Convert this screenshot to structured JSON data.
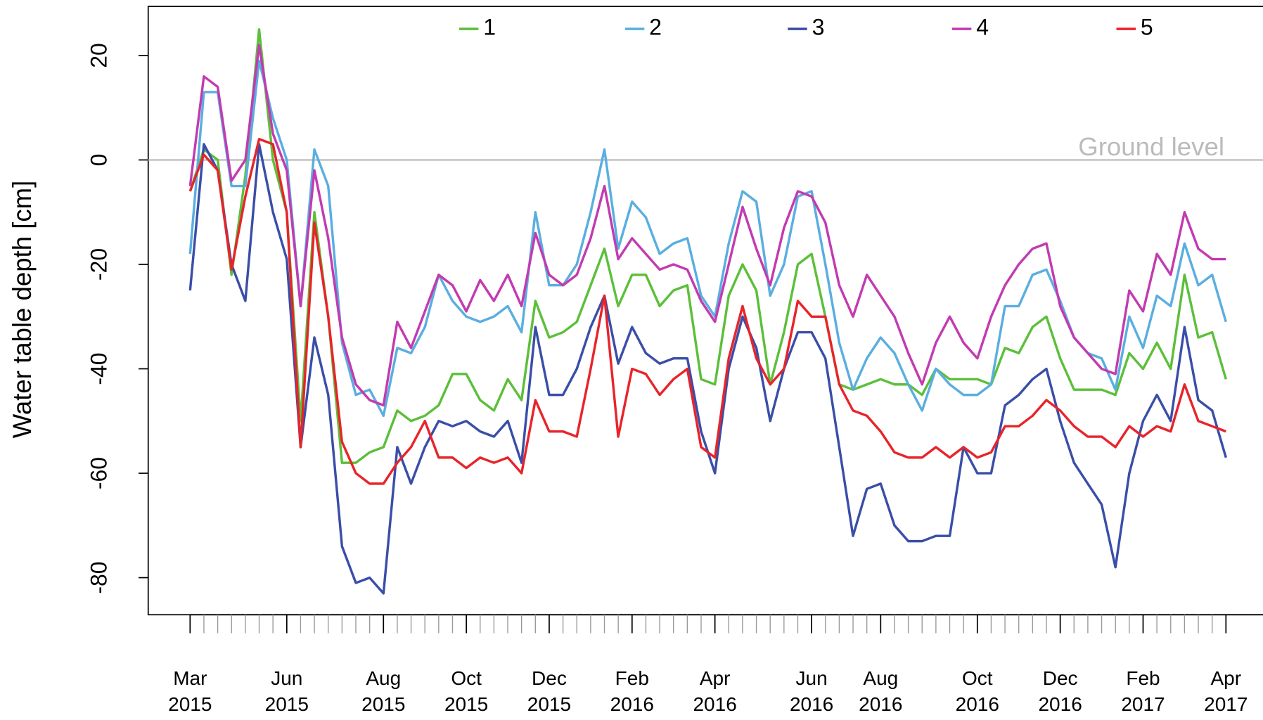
{
  "chart_data": {
    "type": "line",
    "y_label": "Water table depth [cm]",
    "categories": [
      "Mar\n2015",
      null,
      null,
      null,
      null,
      null,
      null,
      "Jun\n2015",
      null,
      null,
      null,
      null,
      null,
      null,
      "Aug\n2015",
      null,
      null,
      null,
      null,
      null,
      "Oct\n2015",
      null,
      null,
      null,
      null,
      null,
      "Dec\n2015",
      null,
      null,
      null,
      null,
      null,
      "Feb\n2016",
      null,
      null,
      null,
      null,
      null,
      "Apr\n2016",
      null,
      null,
      null,
      null,
      null,
      null,
      "Jun\n2016",
      null,
      null,
      null,
      null,
      "Aug\n2016",
      null,
      null,
      null,
      null,
      null,
      null,
      "Oct\n2016",
      null,
      null,
      null,
      null,
      null,
      "Dec\n2016",
      null,
      null,
      null,
      null,
      null,
      "Feb\n2017",
      null,
      null,
      null,
      null,
      null,
      "Apr\n2017"
    ],
    "ylim": [
      -87.1,
      29.4
    ],
    "yticks": [
      20,
      0,
      -20,
      -40,
      -60,
      -80
    ],
    "reference_line": {
      "value": 0,
      "label": "Ground level",
      "color": "#bbbbbb"
    },
    "legend": "top",
    "series": [
      {
        "name": "1",
        "color": "#5cbf3a",
        "values": [
          -6,
          2,
          0,
          -22,
          -3,
          25,
          0,
          -10,
          -50,
          -10,
          -30,
          -58,
          -58,
          -56,
          -55,
          -48,
          -50,
          -49,
          -47,
          -41,
          -41,
          -46,
          -48,
          -42,
          -46,
          -27,
          -34,
          -33,
          -31,
          -24,
          -17,
          -28,
          -22,
          -22,
          -28,
          -25,
          -24,
          -42,
          -43,
          -26,
          -20,
          -25,
          -43,
          -33,
          -20,
          -18,
          -30,
          -43,
          -44,
          -43,
          -42,
          -43,
          -43,
          -45,
          -40,
          -42,
          -42,
          -42,
          -43,
          -36,
          -37,
          -32,
          -30,
          -38,
          -44,
          -44,
          -44,
          -45,
          -37,
          -40,
          -35,
          -40,
          -22,
          -34,
          -33,
          -42
        ]
      },
      {
        "name": "2",
        "color": "#5aaee0",
        "values": [
          -18,
          13,
          13,
          -5,
          -5,
          19,
          8,
          0,
          -28,
          2,
          -5,
          -35,
          -45,
          -44,
          -49,
          -36,
          -37,
          -32,
          -22,
          -27,
          -30,
          -31,
          -30,
          -28,
          -33,
          -10,
          -24,
          -24,
          -20,
          -10,
          2,
          -17,
          -8,
          -11,
          -18,
          -16,
          -15,
          -26,
          -30,
          -16,
          -6,
          -8,
          -26,
          -20,
          -7,
          -6,
          -20,
          -35,
          -44,
          -38,
          -34,
          -37,
          -43,
          -48,
          -40,
          -43,
          -45,
          -45,
          -43,
          -28,
          -28,
          -22,
          -21,
          -27,
          -34,
          -37,
          -38,
          -44,
          -30,
          -36,
          -26,
          -28,
          -16,
          -24,
          -22,
          -31
        ]
      },
      {
        "name": "3",
        "color": "#3a4ea8",
        "values": [
          -25,
          3,
          -2,
          -20,
          -27,
          3,
          -10,
          -19,
          -55,
          -34,
          -45,
          -74,
          -81,
          -80,
          -83,
          -55,
          -62,
          -55,
          -50,
          -51,
          -50,
          -52,
          -53,
          -50,
          -58,
          -32,
          -45,
          -45,
          -40,
          -32,
          -26,
          -39,
          -32,
          -37,
          -39,
          -38,
          -38,
          -52,
          -60,
          -40,
          -30,
          -36,
          -50,
          -40,
          -33,
          -33,
          -38,
          -55,
          -72,
          -63,
          -62,
          -70,
          -73,
          -73,
          -72,
          -72,
          -55,
          -60,
          -60,
          -47,
          -45,
          -42,
          -40,
          -50,
          -58,
          -62,
          -66,
          -78,
          -60,
          -50,
          -45,
          -50,
          -32,
          -46,
          -48,
          -57
        ]
      },
      {
        "name": "4",
        "color": "#c23bb0",
        "values": [
          -5,
          16,
          14,
          -4,
          0,
          22,
          5,
          -2,
          -28,
          -2,
          -15,
          -34,
          -43,
          -46,
          -47,
          -31,
          -36,
          -29,
          -22,
          -24,
          -29,
          -23,
          -27,
          -22,
          -28,
          -14,
          -22,
          -24,
          -22,
          -15,
          -5,
          -19,
          -15,
          -18,
          -21,
          -20,
          -21,
          -27,
          -31,
          -20,
          -9,
          -17,
          -24,
          -13,
          -6,
          -7,
          -12,
          -24,
          -30,
          -22,
          -26,
          -30,
          -37,
          -43,
          -35,
          -30,
          -35,
          -38,
          -30,
          -24,
          -20,
          -17,
          -16,
          -28,
          -34,
          -37,
          -40,
          -41,
          -25,
          -29,
          -18,
          -22,
          -10,
          -17,
          -19,
          -19
        ]
      },
      {
        "name": "5",
        "color": "#e8242a",
        "values": [
          -6,
          1,
          -2,
          -21,
          -7,
          4,
          3,
          -10,
          -55,
          -12,
          -30,
          -54,
          -60,
          -62,
          -62,
          -58,
          -55,
          -50,
          -57,
          -57,
          -59,
          -57,
          -58,
          -57,
          -60,
          -46,
          -52,
          -52,
          -53,
          -40,
          -26,
          -53,
          -40,
          -41,
          -45,
          -42,
          -40,
          -55,
          -57,
          -38,
          -28,
          -38,
          -43,
          -40,
          -27,
          -30,
          -30,
          -43,
          -48,
          -49,
          -52,
          -56,
          -57,
          -57,
          -55,
          -57,
          -55,
          -57,
          -56,
          -51,
          -51,
          -49,
          -46,
          -48,
          -51,
          -53,
          -53,
          -55,
          -51,
          -53,
          -51,
          -52,
          -43,
          -50,
          -51,
          -52
        ]
      }
    ]
  }
}
